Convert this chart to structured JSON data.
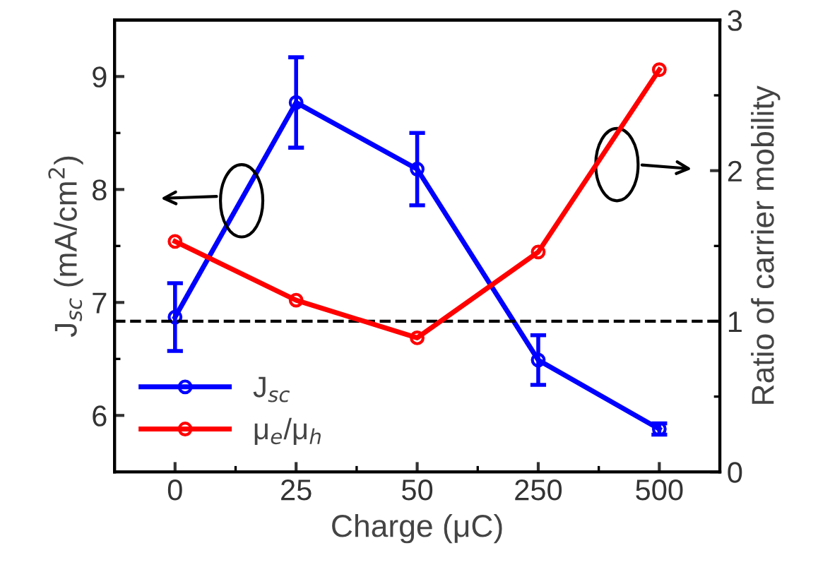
{
  "chart_data": {
    "type": "line",
    "xlabel": "Charge (μC)",
    "ylabel": "J$_{sc}$ (mA/cm$^{2}$)",
    "y2label": "Ratio of carrier mobility",
    "categories": [
      "0",
      "25",
      "50",
      "250",
      "500"
    ],
    "series": [
      {
        "name": "J$_{sc}$",
        "color": "#0000ff",
        "values": [
          6.87,
          8.77,
          8.18,
          6.49,
          5.88
        ],
        "errors": [
          0.3,
          0.4,
          0.32,
          0.22,
          0.05
        ]
      },
      {
        "name": "μ$_{e}$/μ$_{h}$",
        "color": "#ff0000",
        "values": [
          1.53,
          1.14,
          0.89,
          1.46,
          2.67
        ],
        "axis": "y2"
      }
    ],
    "ylim": [
      5.5,
      9.5
    ],
    "yticks": [
      6,
      7,
      8,
      9
    ],
    "y2lim": [
      0,
      3
    ],
    "y2ticks": [
      0,
      1,
      2,
      3
    ],
    "ref_lines": [
      {
        "axis": "y2",
        "value": 1,
        "color": "#000000",
        "line_style": "dashed"
      }
    ],
    "marker": "circle",
    "line_style": "solid",
    "legend": "bottom left",
    "grid": false
  }
}
